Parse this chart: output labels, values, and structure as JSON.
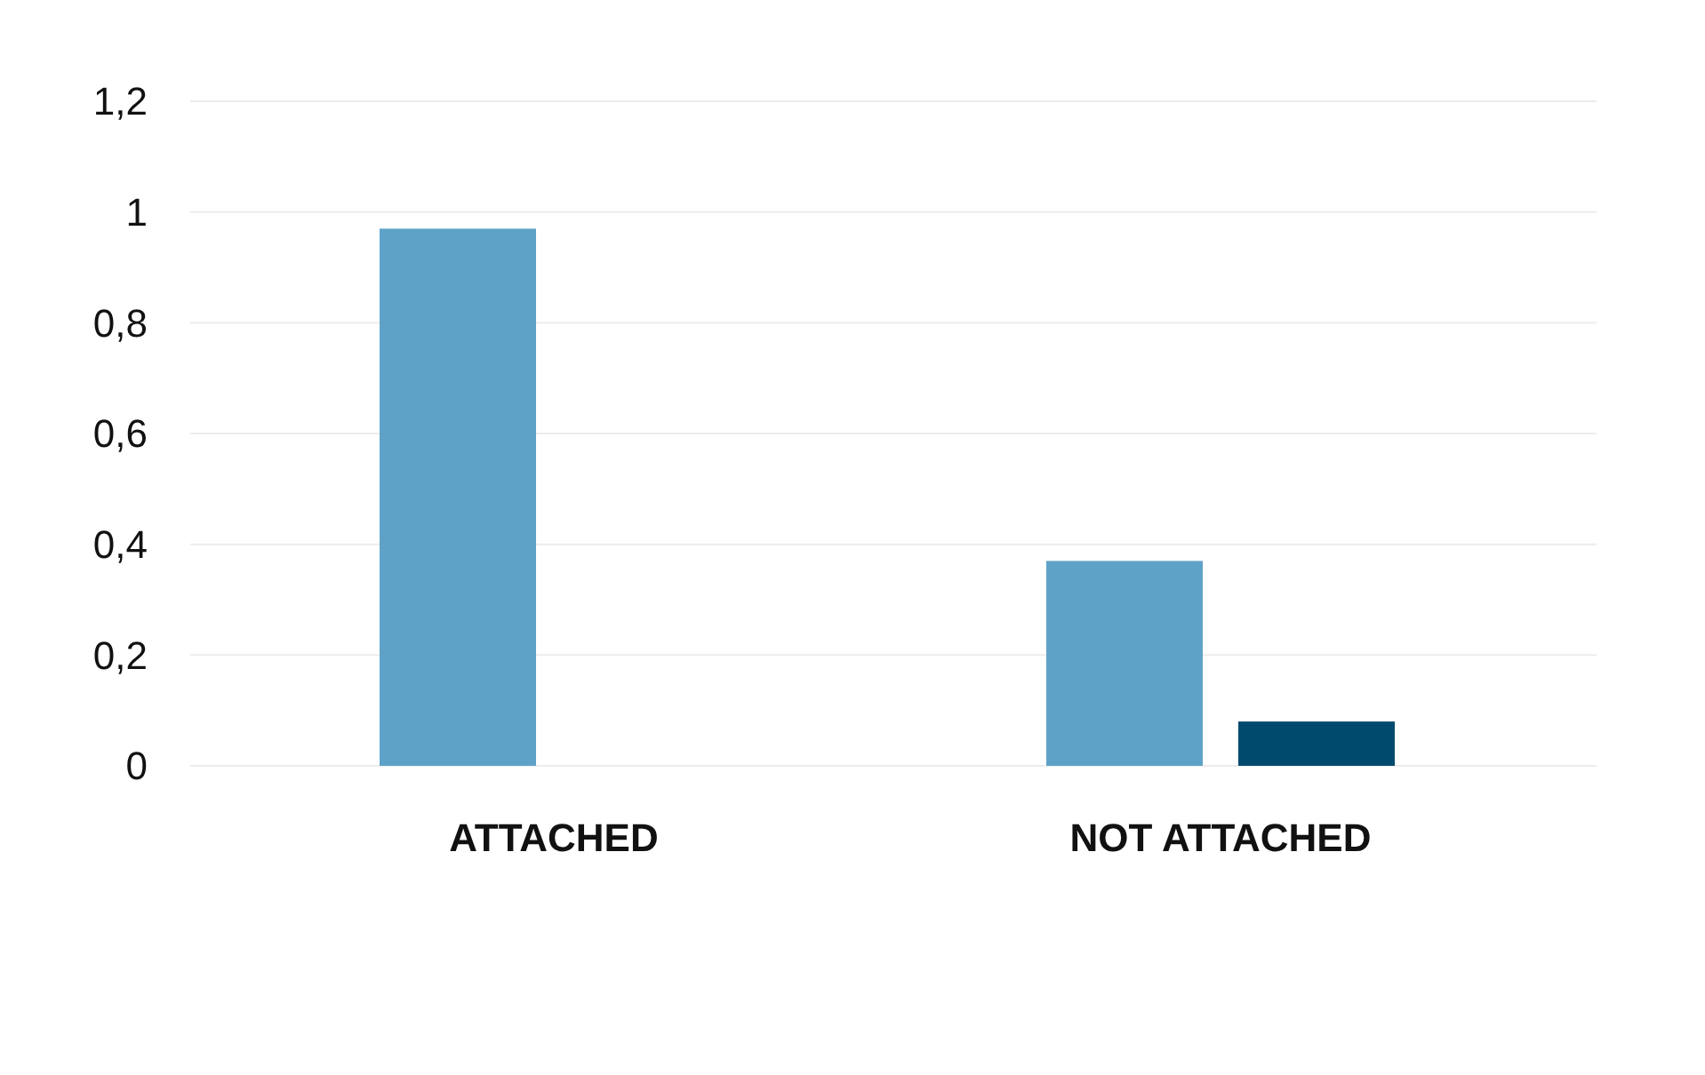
{
  "chart_data": {
    "type": "bar",
    "categories": [
      "ATTACHED",
      "NOT ATTACHED"
    ],
    "series": [
      {
        "color": "#5fa2c8",
        "values": [
          0.97,
          0.37
        ]
      },
      {
        "color": "#004a6e",
        "values": [
          null,
          0.08
        ]
      }
    ],
    "ylim": [
      0,
      1.2
    ],
    "yticks": [
      0,
      {
        "value": 0.2,
        "label": "0,2"
      },
      {
        "value": 0.4,
        "label": "0,4"
      },
      {
        "value": 0.6,
        "label": "0,6"
      },
      {
        "value": 0.8,
        "label": "0,8"
      },
      1,
      {
        "value": 1.2,
        "label": "1,2"
      }
    ],
    "grid": "y"
  }
}
